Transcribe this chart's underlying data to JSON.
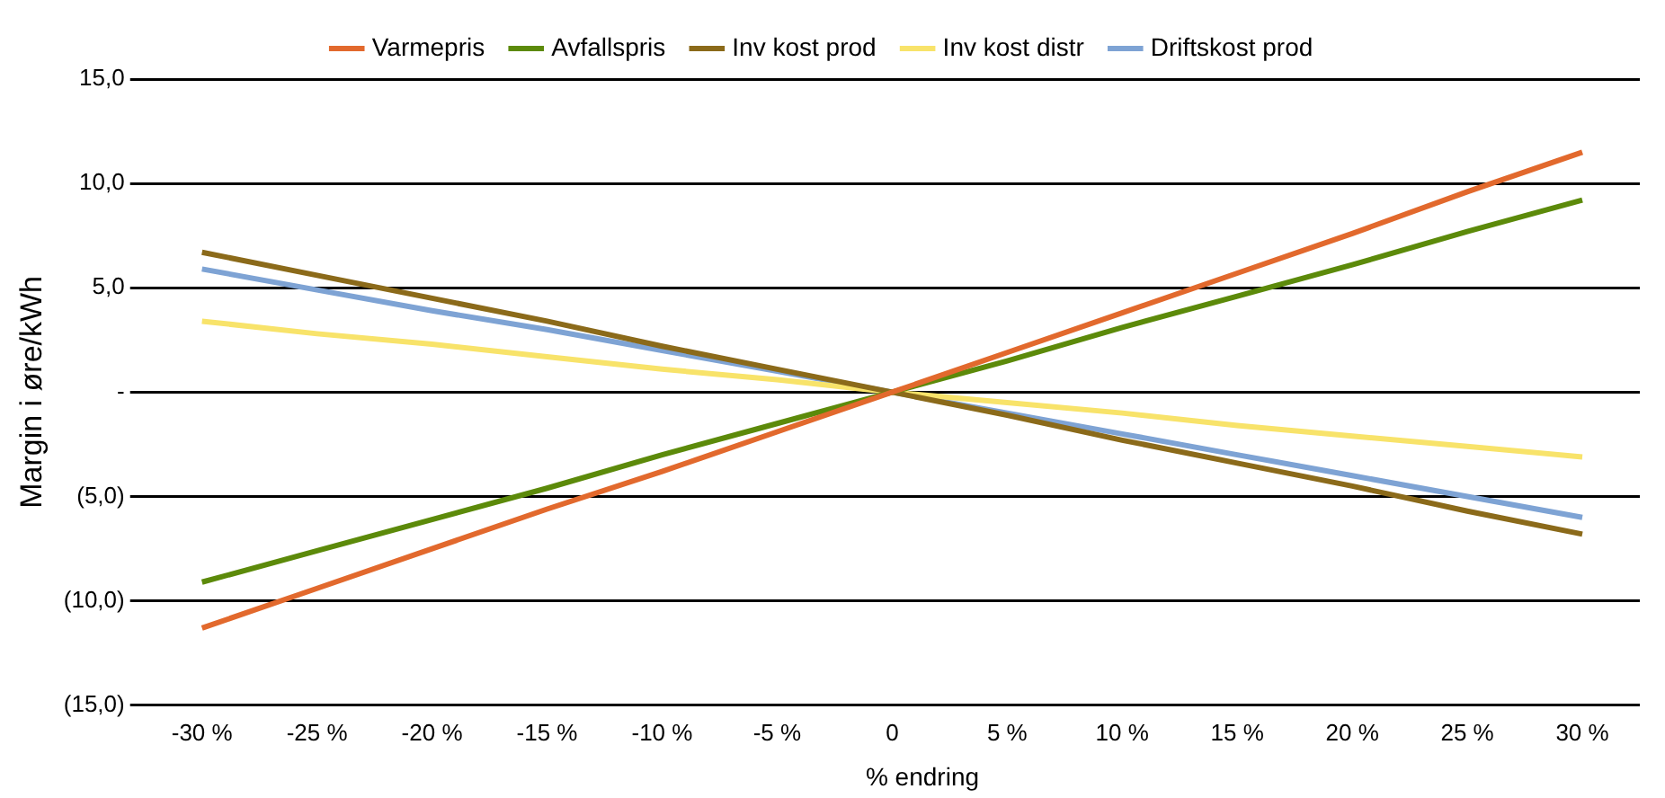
{
  "chart_data": {
    "type": "line",
    "xlabel": "% endring",
    "ylabel": "Margin i øre/kWh",
    "categories": [
      "-30 %",
      "-25 %",
      "-20 %",
      "-15 %",
      "-10 %",
      "-5 %",
      "0",
      "5 %",
      "10 %",
      "15 %",
      "20 %",
      "25 %",
      "30 %"
    ],
    "series": [
      {
        "name": "Varmepris",
        "color": "#e2692d",
        "values": [
          -11.3,
          -9.4,
          -7.5,
          -5.6,
          -3.8,
          -1.9,
          0,
          1.9,
          3.8,
          5.7,
          7.6,
          9.6,
          11.5
        ]
      },
      {
        "name": "Avfallspris",
        "color": "#5c8a0a",
        "values": [
          -9.1,
          -7.6,
          -6.1,
          -4.6,
          -3.0,
          -1.5,
          0,
          1.5,
          3.1,
          4.6,
          6.1,
          7.7,
          9.2
        ]
      },
      {
        "name": "Inv kost prod",
        "color": "#8b6a1a",
        "values": [
          6.7,
          5.6,
          4.5,
          3.4,
          2.2,
          1.1,
          0,
          -1.1,
          -2.3,
          -3.4,
          -4.5,
          -5.7,
          -6.8
        ]
      },
      {
        "name": "Inv kost distr",
        "color": "#f8e36a",
        "values": [
          3.4,
          2.8,
          2.3,
          1.7,
          1.1,
          0.6,
          0,
          -0.5,
          -1.0,
          -1.6,
          -2.1,
          -2.6,
          -3.1
        ]
      },
      {
        "name": "Driftskost prod",
        "color": "#7ea3d4",
        "values": [
          5.9,
          4.9,
          3.9,
          3.0,
          2.0,
          1.0,
          0,
          -1.0,
          -2.0,
          -3.0,
          -4.0,
          -5.0,
          -6.0
        ]
      }
    ],
    "ylim": [
      -15,
      15
    ],
    "yticks": [
      {
        "value": -15,
        "label": "(15,0)"
      },
      {
        "value": -10,
        "label": "(10,0)"
      },
      {
        "value": -5,
        "label": "(5,0)"
      },
      {
        "value": 0,
        "label": "-"
      },
      {
        "value": 5,
        "label": "5,0"
      },
      {
        "value": 10,
        "label": "10,0"
      },
      {
        "value": 15,
        "label": "15,0"
      }
    ],
    "grid": "y",
    "legend": "top"
  }
}
